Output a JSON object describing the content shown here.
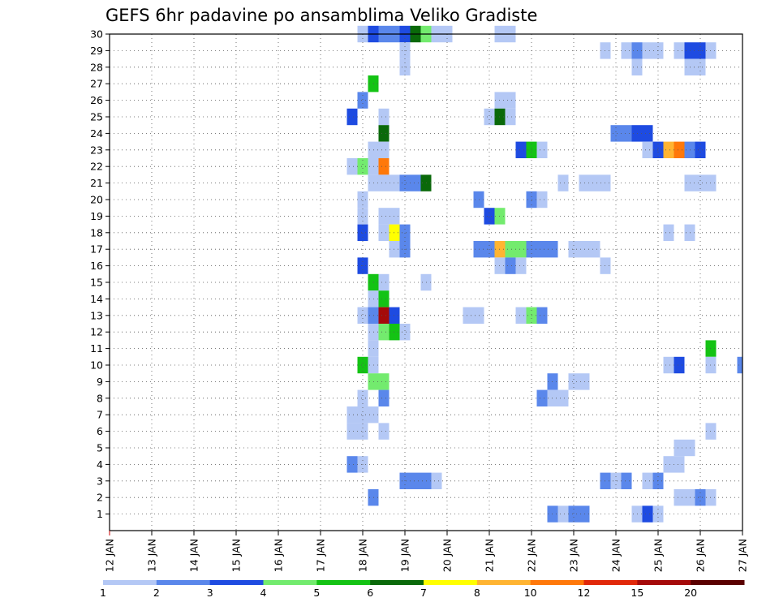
{
  "chart_data": {
    "type": "heatmap",
    "title": "GEFS 6hr padavine po ansamblima Veliko Gradiste",
    "xlabel": "",
    "ylabel": "",
    "x_tick_labels": [
      "12 JAN",
      "13 JAN",
      "14 JAN",
      "15 JAN",
      "16 JAN",
      "17 JAN",
      "18 JAN",
      "19 JAN",
      "20 JAN",
      "21 JAN",
      "22 JAN",
      "23 JAN",
      "24 JAN",
      "25 JAN",
      "26 JAN",
      "27 JAN"
    ],
    "y_tick_labels": [
      "1",
      "2",
      "3",
      "4",
      "5",
      "6",
      "7",
      "8",
      "9",
      "10",
      "11",
      "12",
      "13",
      "14",
      "15",
      "16",
      "17",
      "18",
      "19",
      "20",
      "21",
      "22",
      "23",
      "24",
      "25",
      "26",
      "27",
      "28",
      "29",
      "30"
    ],
    "xlim_days": [
      12,
      27
    ],
    "ylim_members": [
      0,
      30
    ],
    "cell_hours": 6,
    "grid": true,
    "colorbar": {
      "labels": [
        "1",
        "2",
        "3",
        "4",
        "5",
        "6",
        "7",
        "8",
        "10",
        "12",
        "15",
        "20"
      ],
      "colors": [
        "#b4c8f5",
        "#5a87eb",
        "#1e4be1",
        "#73eb6e",
        "#14c314",
        "#0a690a",
        "#ffff00",
        "#ffb432",
        "#ff780a",
        "#e1280a",
        "#a50a0a",
        "#5a0000"
      ]
    },
    "cells": [
      [
        30,
        18.0,
        1
      ],
      [
        30,
        18.25,
        3
      ],
      [
        30,
        18.5,
        2
      ],
      [
        30,
        18.75,
        2
      ],
      [
        30,
        19.0,
        3
      ],
      [
        30,
        19.25,
        6
      ],
      [
        30,
        19.5,
        4
      ],
      [
        30,
        19.75,
        1
      ],
      [
        30,
        20.0,
        1
      ],
      [
        30,
        21.25,
        1
      ],
      [
        30,
        21.5,
        1
      ],
      [
        29,
        19.0,
        1
      ],
      [
        29,
        23.75,
        1
      ],
      [
        29,
        24.25,
        1
      ],
      [
        29,
        24.5,
        2
      ],
      [
        29,
        24.75,
        1
      ],
      [
        29,
        25.0,
        1
      ],
      [
        29,
        25.5,
        1
      ],
      [
        29,
        25.75,
        3
      ],
      [
        29,
        26.0,
        3
      ],
      [
        29,
        26.25,
        1
      ],
      [
        28,
        19.0,
        1
      ],
      [
        28,
        24.5,
        1
      ],
      [
        28,
        25.75,
        1
      ],
      [
        28,
        26.0,
        1
      ],
      [
        27,
        18.25,
        5
      ],
      [
        26,
        18.0,
        2
      ],
      [
        26,
        21.25,
        1
      ],
      [
        26,
        21.5,
        1
      ],
      [
        25,
        17.75,
        3
      ],
      [
        25,
        18.5,
        1
      ],
      [
        25,
        21.0,
        1
      ],
      [
        25,
        21.25,
        6
      ],
      [
        25,
        21.5,
        1
      ],
      [
        24,
        18.5,
        6
      ],
      [
        24,
        24.0,
        2
      ],
      [
        24,
        24.25,
        2
      ],
      [
        24,
        24.5,
        3
      ],
      [
        24,
        24.75,
        3
      ],
      [
        23,
        18.25,
        1
      ],
      [
        23,
        18.5,
        1
      ],
      [
        23,
        21.75,
        3
      ],
      [
        23,
        22.0,
        5
      ],
      [
        23,
        22.25,
        1
      ],
      [
        23,
        24.75,
        1
      ],
      [
        23,
        25.0,
        3
      ],
      [
        23,
        25.25,
        8
      ],
      [
        23,
        25.5,
        9
      ],
      [
        23,
        25.75,
        2
      ],
      [
        23,
        26.0,
        3
      ],
      [
        22,
        17.75,
        1
      ],
      [
        22,
        18.0,
        4
      ],
      [
        22,
        18.25,
        1
      ],
      [
        22,
        18.5,
        9
      ],
      [
        21,
        18.25,
        1
      ],
      [
        21,
        18.5,
        1
      ],
      [
        21,
        18.75,
        1
      ],
      [
        21,
        19.0,
        2
      ],
      [
        21,
        19.25,
        2
      ],
      [
        21,
        19.5,
        6
      ],
      [
        21,
        22.75,
        1
      ],
      [
        21,
        23.25,
        1
      ],
      [
        21,
        23.5,
        1
      ],
      [
        21,
        23.75,
        1
      ],
      [
        21,
        25.75,
        1
      ],
      [
        21,
        26.0,
        1
      ],
      [
        21,
        26.25,
        1
      ],
      [
        20,
        18.0,
        1
      ],
      [
        20,
        20.75,
        2
      ],
      [
        20,
        22.0,
        2
      ],
      [
        20,
        22.25,
        1
      ],
      [
        19,
        18.0,
        1
      ],
      [
        19,
        18.5,
        1
      ],
      [
        19,
        18.75,
        1
      ],
      [
        19,
        21.0,
        3
      ],
      [
        19,
        21.25,
        4
      ],
      [
        18,
        18.0,
        3
      ],
      [
        18,
        18.5,
        1
      ],
      [
        18,
        18.75,
        7
      ],
      [
        18,
        19.0,
        2
      ],
      [
        18,
        25.25,
        1
      ],
      [
        18,
        25.75,
        1
      ],
      [
        17,
        18.75,
        1
      ],
      [
        17,
        19.0,
        2
      ],
      [
        17,
        20.75,
        2
      ],
      [
        17,
        21.0,
        2
      ],
      [
        17,
        21.25,
        8
      ],
      [
        17,
        21.5,
        4
      ],
      [
        17,
        21.75,
        4
      ],
      [
        17,
        22.0,
        2
      ],
      [
        17,
        22.25,
        2
      ],
      [
        17,
        22.5,
        2
      ],
      [
        17,
        23.0,
        1
      ],
      [
        17,
        23.25,
        1
      ],
      [
        17,
        23.5,
        1
      ],
      [
        16,
        18.0,
        3
      ],
      [
        16,
        21.25,
        1
      ],
      [
        16,
        21.5,
        2
      ],
      [
        16,
        21.75,
        1
      ],
      [
        16,
        23.75,
        1
      ],
      [
        15,
        18.25,
        5
      ],
      [
        15,
        18.5,
        1
      ],
      [
        15,
        19.5,
        1
      ],
      [
        14,
        18.25,
        1
      ],
      [
        14,
        18.5,
        5
      ],
      [
        13,
        18.0,
        1
      ],
      [
        13,
        18.25,
        2
      ],
      [
        13,
        18.5,
        11
      ],
      [
        13,
        18.75,
        3
      ],
      [
        13,
        20.5,
        1
      ],
      [
        13,
        20.75,
        1
      ],
      [
        13,
        21.75,
        1
      ],
      [
        13,
        22.0,
        4
      ],
      [
        13,
        22.25,
        2
      ],
      [
        12,
        18.25,
        1
      ],
      [
        12,
        18.5,
        4
      ],
      [
        12,
        18.75,
        5
      ],
      [
        12,
        19.0,
        1
      ],
      [
        11,
        18.25,
        1
      ],
      [
        11,
        26.25,
        5
      ],
      [
        10,
        18.0,
        5
      ],
      [
        10,
        18.25,
        1
      ],
      [
        10,
        25.25,
        1
      ],
      [
        10,
        25.5,
        3
      ],
      [
        10,
        26.25,
        1
      ],
      [
        10,
        27.0,
        2
      ],
      [
        9,
        18.25,
        4
      ],
      [
        9,
        18.5,
        4
      ],
      [
        9,
        22.5,
        2
      ],
      [
        9,
        23.0,
        1
      ],
      [
        9,
        23.25,
        1
      ],
      [
        8,
        18.0,
        1
      ],
      [
        8,
        18.5,
        2
      ],
      [
        8,
        22.25,
        2
      ],
      [
        8,
        22.5,
        1
      ],
      [
        8,
        22.75,
        1
      ],
      [
        7,
        17.75,
        1
      ],
      [
        7,
        18.0,
        1
      ],
      [
        7,
        18.25,
        1
      ],
      [
        6,
        17.75,
        1
      ],
      [
        6,
        18.0,
        1
      ],
      [
        6,
        18.5,
        1
      ],
      [
        6,
        26.25,
        1
      ],
      [
        5,
        25.5,
        1
      ],
      [
        5,
        25.75,
        1
      ],
      [
        4,
        17.75,
        2
      ],
      [
        4,
        18.0,
        1
      ],
      [
        4,
        25.25,
        1
      ],
      [
        4,
        25.5,
        1
      ],
      [
        3,
        19.0,
        2
      ],
      [
        3,
        19.25,
        2
      ],
      [
        3,
        19.5,
        2
      ],
      [
        3,
        19.75,
        1
      ],
      [
        3,
        23.75,
        2
      ],
      [
        3,
        24.0,
        1
      ],
      [
        3,
        24.25,
        2
      ],
      [
        3,
        24.75,
        1
      ],
      [
        3,
        25.0,
        2
      ],
      [
        2,
        18.25,
        2
      ],
      [
        2,
        25.5,
        1
      ],
      [
        2,
        25.75,
        1
      ],
      [
        2,
        26.0,
        2
      ],
      [
        2,
        26.25,
        1
      ],
      [
        1,
        22.5,
        2
      ],
      [
        1,
        22.75,
        1
      ],
      [
        1,
        23.0,
        2
      ],
      [
        1,
        23.25,
        2
      ],
      [
        1,
        24.5,
        1
      ],
      [
        1,
        24.75,
        3
      ],
      [
        1,
        25.0,
        1
      ]
    ]
  }
}
